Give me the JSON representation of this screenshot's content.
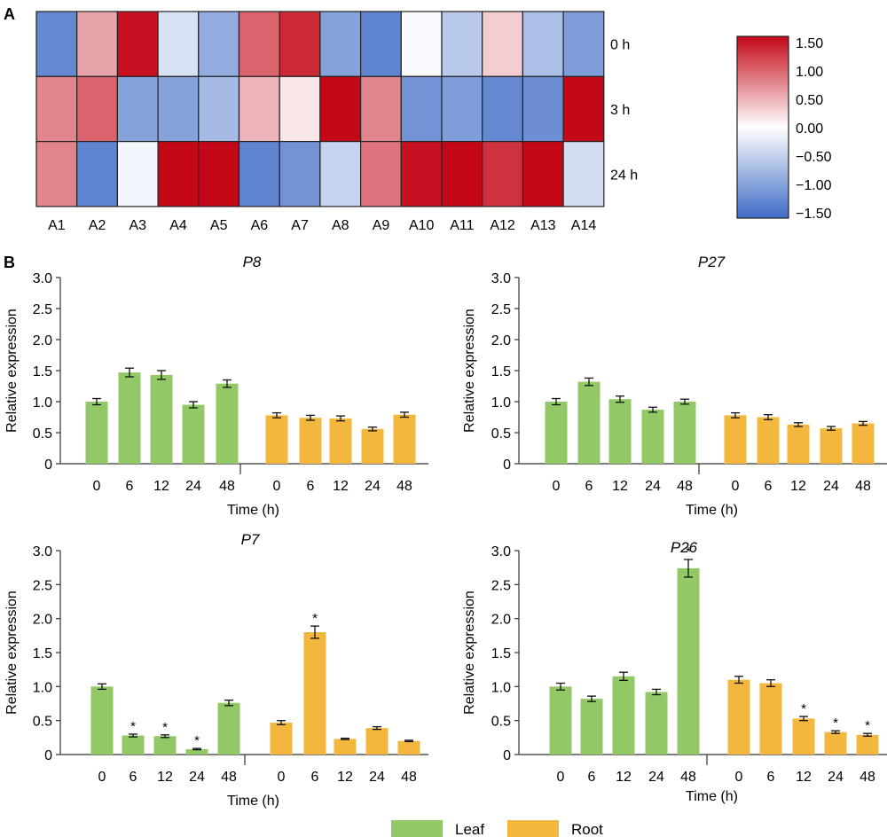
{
  "panel_labels": [
    "A",
    "B"
  ],
  "colors": {
    "leaf": "#92c966",
    "root": "#f3b73d",
    "heat_low": "#3f6cc6",
    "heat_mid": "#ffffff",
    "heat_high": "#c40818"
  },
  "legend": {
    "leaf_label": "Leaf",
    "root_label": "Root"
  },
  "chart_data": [
    {
      "type": "heatmap",
      "columns": [
        "A1",
        "A2",
        "A3",
        "A4",
        "A5",
        "A6",
        "A7",
        "A8",
        "A9",
        "A10",
        "A11",
        "A12",
        "A13",
        "A14"
      ],
      "rows": [
        "0 h",
        "3 h",
        "24 h"
      ],
      "values": [
        [
          -1.2,
          0.55,
          1.45,
          -0.3,
          -0.85,
          0.95,
          1.3,
          -0.95,
          -1.25,
          -0.05,
          -0.55,
          0.3,
          -0.65,
          -1.0
        ],
        [
          0.75,
          0.95,
          -0.95,
          -0.95,
          -0.7,
          0.45,
          0.15,
          1.55,
          0.75,
          -1.1,
          -1.0,
          -1.2,
          -1.15,
          1.5
        ],
        [
          0.75,
          -1.25,
          -0.1,
          1.5,
          1.55,
          -1.25,
          -1.1,
          -0.45,
          0.85,
          1.45,
          1.5,
          1.25,
          1.55,
          -0.35
        ]
      ],
      "colorbar": {
        "ticks": [
          "1.50",
          "1.00",
          "0.50",
          "0.00",
          "−0.50",
          "−1.00",
          "−1.50"
        ],
        "range": [
          -1.5,
          1.5
        ]
      }
    },
    {
      "type": "bar",
      "title": "P8",
      "xlabel": "Time (h)",
      "ylabel": "Relative expression",
      "ylim": [
        0,
        3
      ],
      "yticks": [
        "0",
        "0.5",
        "1.0",
        "1.5",
        "2.0",
        "2.5",
        "3.0"
      ],
      "categories": [
        "0",
        "6",
        "12",
        "24",
        "48"
      ],
      "series": [
        {
          "values": [
            1.0,
            1.47,
            1.43,
            0.95,
            1.29
          ],
          "errors": [
            0.05,
            0.07,
            0.07,
            0.05,
            0.06
          ],
          "stars": [
            false,
            false,
            false,
            false,
            false
          ]
        },
        {
          "values": [
            0.78,
            0.74,
            0.73,
            0.56,
            0.79
          ],
          "errors": [
            0.04,
            0.04,
            0.04,
            0.03,
            0.04
          ],
          "stars": [
            false,
            false,
            false,
            false,
            false
          ]
        }
      ]
    },
    {
      "type": "bar",
      "title": "P27",
      "xlabel": "Time (h)",
      "ylabel": "Relative expression",
      "ylim": [
        0,
        3
      ],
      "yticks": [
        "0",
        "0.5",
        "1.0",
        "1.5",
        "2.0",
        "2.5",
        "3.0"
      ],
      "categories": [
        "0",
        "6",
        "12",
        "24",
        "48"
      ],
      "series": [
        {
          "values": [
            1.0,
            1.32,
            1.04,
            0.87,
            1.0
          ],
          "errors": [
            0.05,
            0.06,
            0.05,
            0.04,
            0.04
          ],
          "stars": [
            false,
            false,
            false,
            false,
            false
          ]
        },
        {
          "values": [
            0.78,
            0.75,
            0.63,
            0.57,
            0.65
          ],
          "errors": [
            0.04,
            0.04,
            0.03,
            0.03,
            0.03
          ],
          "stars": [
            false,
            false,
            false,
            false,
            false
          ]
        }
      ]
    },
    {
      "type": "bar",
      "title": "P7",
      "xlabel": "Time (h)",
      "ylabel": "Relative expression",
      "ylim": [
        0,
        3
      ],
      "yticks": [
        "0",
        "0.5",
        "1.0",
        "1.5",
        "2.0",
        "2.5",
        "3.0"
      ],
      "categories": [
        "0",
        "6",
        "12",
        "24",
        "48"
      ],
      "series": [
        {
          "values": [
            1.0,
            0.28,
            0.27,
            0.08,
            0.76
          ],
          "errors": [
            0.04,
            0.02,
            0.02,
            0.01,
            0.04
          ],
          "stars": [
            false,
            true,
            true,
            true,
            false
          ]
        },
        {
          "values": [
            0.47,
            1.8,
            0.23,
            0.39,
            0.2
          ],
          "errors": [
            0.03,
            0.09,
            0.01,
            0.02,
            0.01
          ],
          "stars": [
            false,
            true,
            false,
            false,
            false
          ]
        }
      ]
    },
    {
      "type": "bar",
      "title": "P26",
      "xlabel": "Time (h)",
      "ylabel": "Relative expression",
      "ylim": [
        0,
        3
      ],
      "yticks": [
        "0",
        "0.5",
        "1.0",
        "1.5",
        "2.0",
        "2.5",
        "3.0"
      ],
      "categories": [
        "0",
        "6",
        "12",
        "24",
        "48"
      ],
      "series": [
        {
          "values": [
            1.0,
            0.82,
            1.15,
            0.92,
            2.74
          ],
          "errors": [
            0.05,
            0.04,
            0.06,
            0.04,
            0.13
          ],
          "stars": [
            false,
            false,
            false,
            false,
            true
          ]
        },
        {
          "values": [
            1.1,
            1.05,
            0.53,
            0.33,
            0.29
          ],
          "errors": [
            0.05,
            0.05,
            0.03,
            0.02,
            0.02
          ],
          "stars": [
            false,
            false,
            true,
            true,
            true
          ]
        }
      ]
    }
  ]
}
